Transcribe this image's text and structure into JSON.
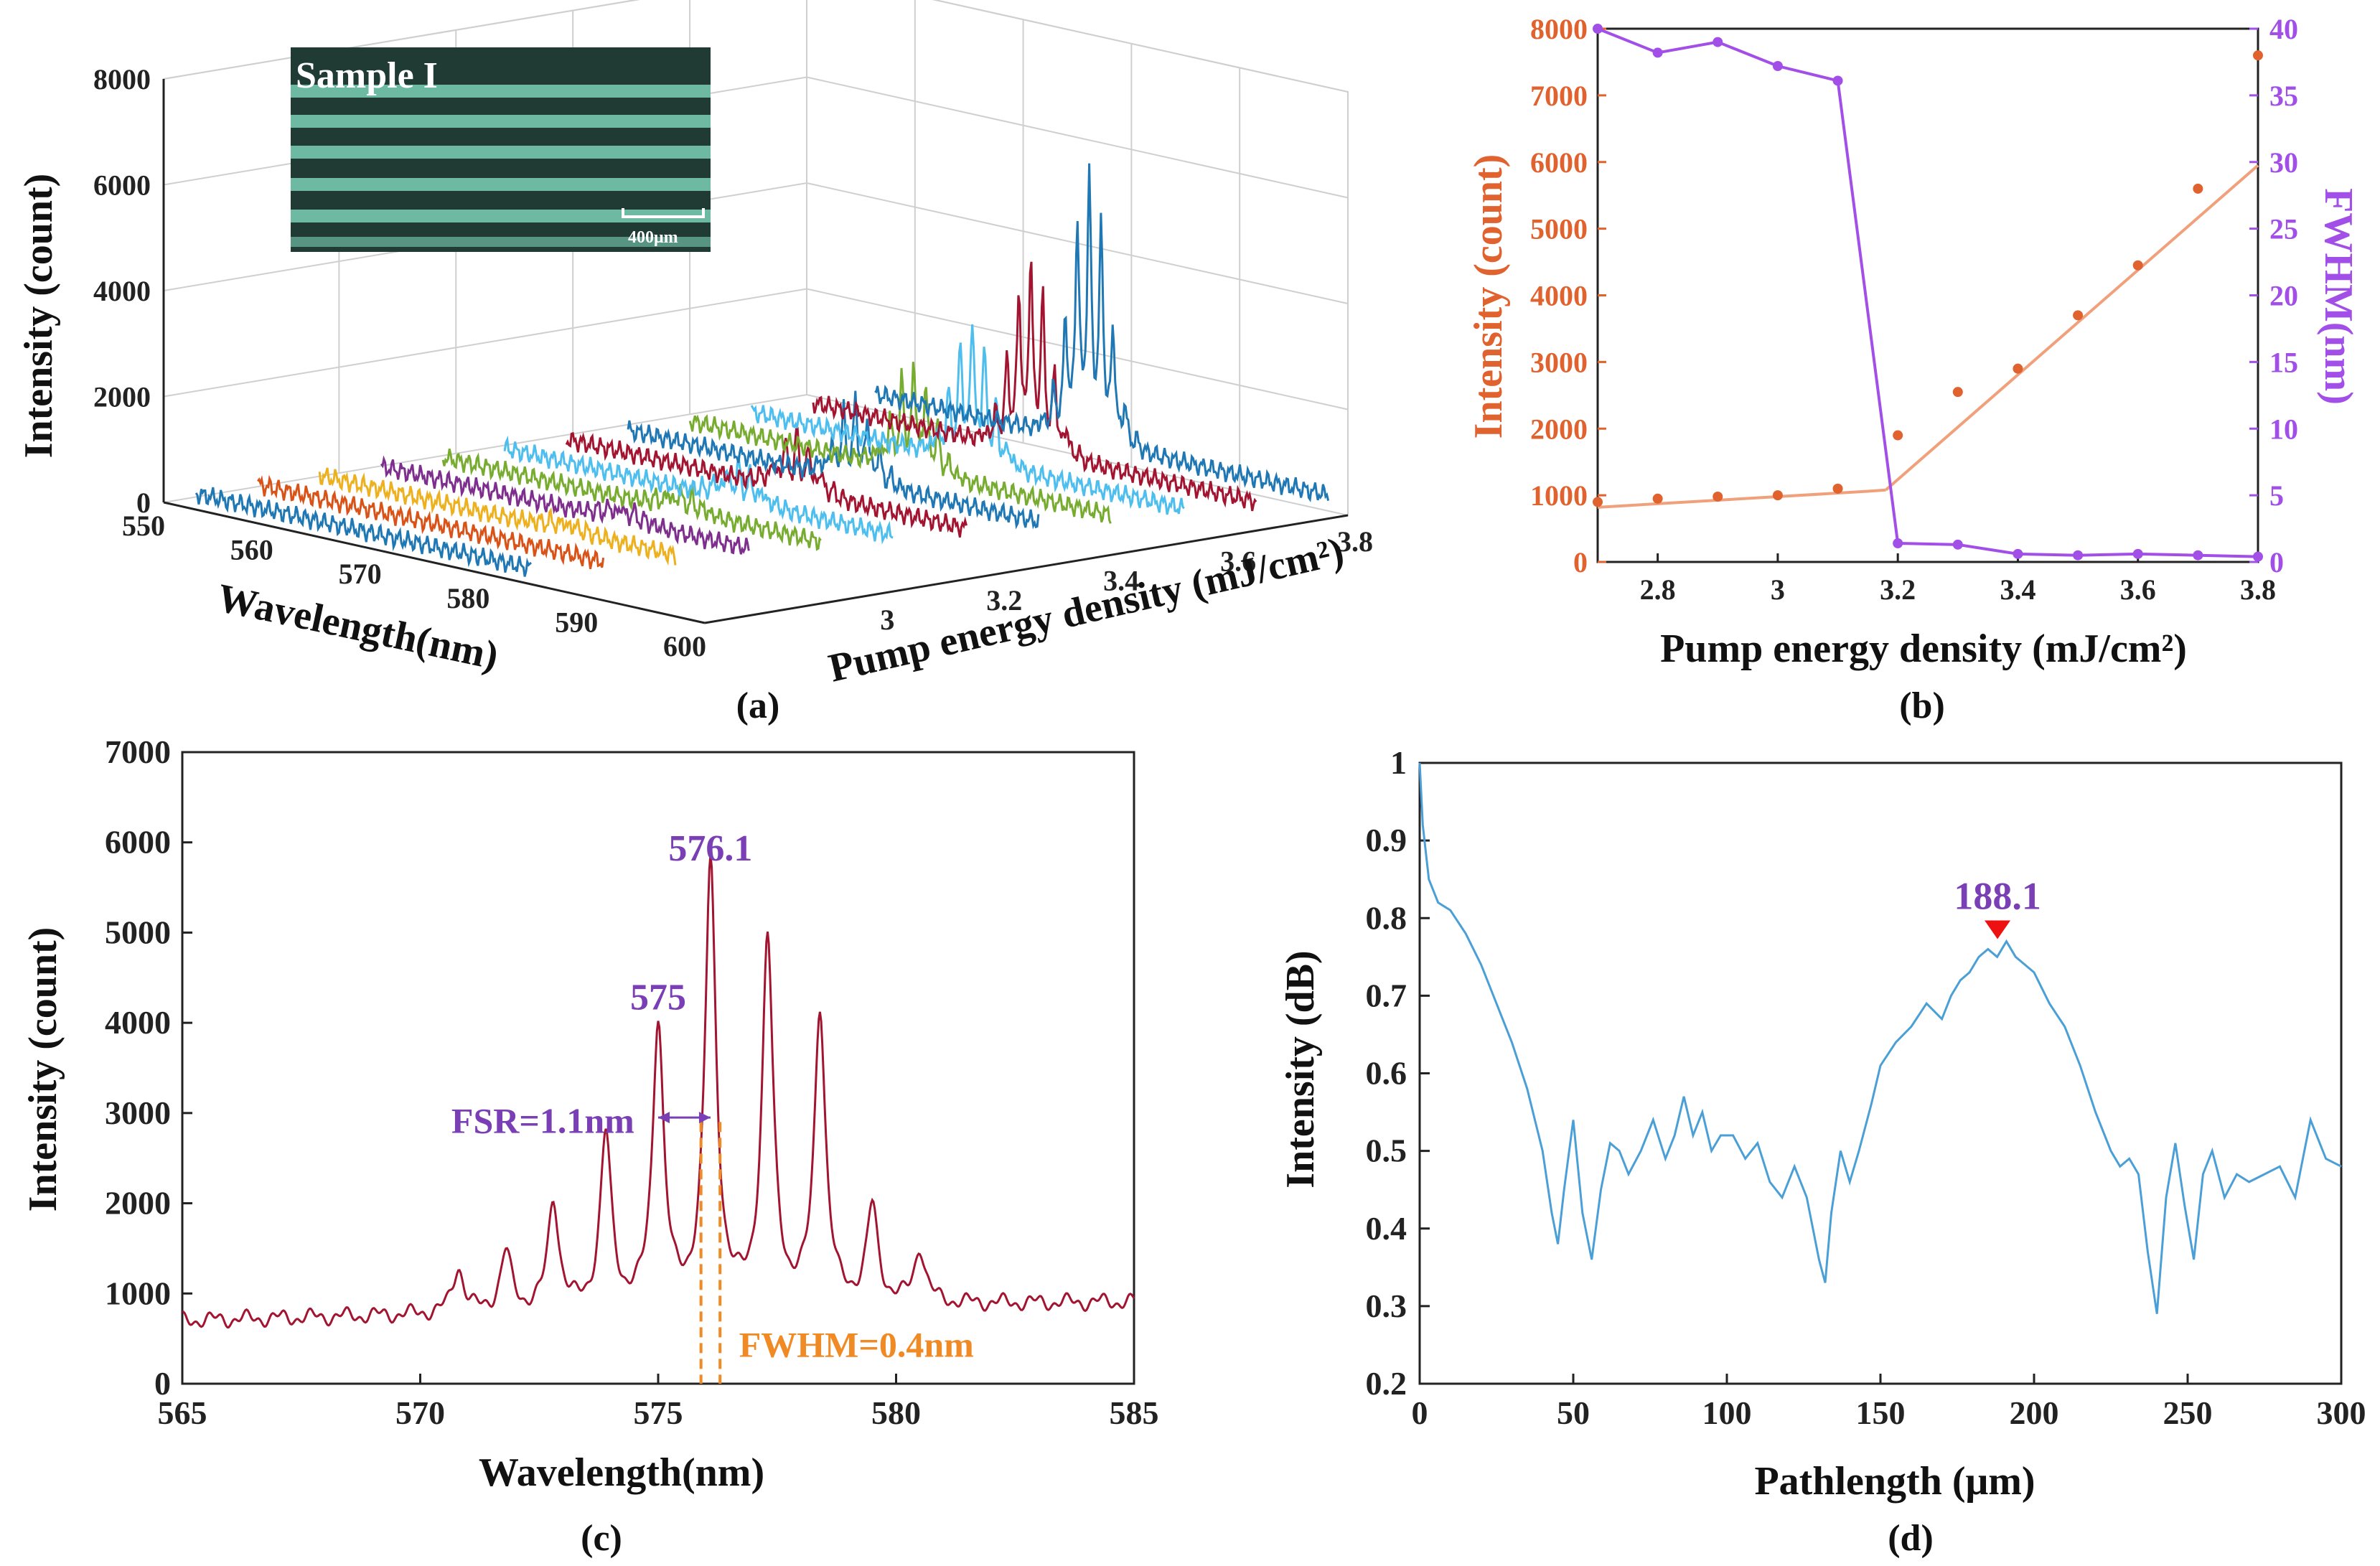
{
  "chart_data": [
    {
      "panel": "(a)",
      "type": "line",
      "projection": "3d",
      "inset_label": "Sample I",
      "scale_bar_label": "400μm",
      "xlabel": "Wavelength(nm)",
      "ylabel": "Pump energy density (mJ/cm²)",
      "zlabel": "Intensity (count)",
      "xlim": [
        550,
        600
      ],
      "ylim": [
        2.8,
        3.8
      ],
      "zlim": [
        0,
        8000
      ],
      "x_ticks": [
        "550",
        "560",
        "570",
        "580",
        "590",
        "600"
      ],
      "y_ticks": [
        "3",
        "3.2",
        "3.4",
        "3.6",
        "3.8"
      ],
      "z_ticks": [
        "0",
        "2000",
        "4000",
        "6000",
        "8000"
      ],
      "series": [
        {
          "pump": 2.7,
          "color": "#1f77b4",
          "peak": 0
        },
        {
          "pump": 2.8,
          "color": "#d95319",
          "peak": 0
        },
        {
          "pump": 2.9,
          "color": "#edb120",
          "peak": 200
        },
        {
          "pump": 3.0,
          "color": "#7e2f8e",
          "peak": 300
        },
        {
          "pump": 3.1,
          "color": "#77ac30",
          "peak": 400
        },
        {
          "pump": 3.2,
          "color": "#4dbeee",
          "peak": 700
        },
        {
          "pump": 3.3,
          "color": "#a2142f",
          "peak": 1100
        },
        {
          "pump": 3.4,
          "color": "#1f77b4",
          "peak": 1500
        },
        {
          "pump": 3.5,
          "color": "#77ac30",
          "peak": 2000
        },
        {
          "pump": 3.6,
          "color": "#4dbeee",
          "peak": 2600
        },
        {
          "pump": 3.7,
          "color": "#a2142f",
          "peak": 3500
        },
        {
          "pump": 3.8,
          "color": "#1f77b4",
          "peak": 4800
        }
      ]
    },
    {
      "panel": "(b)",
      "type": "scatter",
      "xlabel": "Pump energy density (mJ/cm²)",
      "ylabel": "Intensity (count)",
      "y2label": "FWHM(nm)",
      "xlim": [
        2.7,
        3.8
      ],
      "ylim": [
        0,
        8000
      ],
      "y2lim": [
        0,
        40
      ],
      "x_ticks": [
        "2.8",
        "3",
        "3.2",
        "3.4",
        "3.6",
        "3.8"
      ],
      "y_ticks": [
        "0",
        "1000",
        "2000",
        "3000",
        "4000",
        "5000",
        "6000",
        "7000",
        "8000"
      ],
      "y2_ticks": [
        "0",
        "5",
        "10",
        "15",
        "20",
        "25",
        "30",
        "35",
        "40"
      ],
      "series": [
        {
          "name": "Intensity",
          "axis": "left",
          "color": "#e0622e",
          "x": [
            2.7,
            2.8,
            2.9,
            3.0,
            3.1,
            3.2,
            3.3,
            3.4,
            3.5,
            3.6,
            3.7,
            3.8
          ],
          "values": [
            900,
            950,
            980,
            1000,
            1100,
            1900,
            2550,
            2900,
            3700,
            4450,
            5600,
            7600
          ]
        },
        {
          "name": "FWHM",
          "axis": "right",
          "color": "#a24fe8",
          "x": [
            2.7,
            2.8,
            2.9,
            3.0,
            3.1,
            3.2,
            3.3,
            3.4,
            3.5,
            3.6,
            3.7,
            3.8
          ],
          "values": [
            40,
            38.2,
            39,
            37.2,
            36.1,
            1.4,
            1.3,
            0.6,
            0.5,
            0.6,
            0.5,
            0.4
          ]
        }
      ],
      "fit_lines": [
        {
          "color": "#f0a07a",
          "x": [
            2.7,
            3.15,
            3.18
          ],
          "values": [
            820,
            1060,
            1080
          ]
        },
        {
          "color": "#f0a07a",
          "x": [
            3.18,
            3.8
          ],
          "values": [
            1080,
            5950
          ]
        }
      ]
    },
    {
      "panel": "(c)",
      "type": "line",
      "xlabel": "Wavelength(nm)",
      "ylabel": "Intensity (count)",
      "xlim": [
        565,
        585
      ],
      "ylim": [
        0,
        7000
      ],
      "x_ticks": [
        "565",
        "570",
        "575",
        "580",
        "585"
      ],
      "y_ticks": [
        "0",
        "1000",
        "2000",
        "3000",
        "4000",
        "5000",
        "6000",
        "7000"
      ],
      "color": "#a2142f",
      "baseline": 700,
      "peaks": [
        {
          "x": 570.8,
          "y": 1200
        },
        {
          "x": 571.8,
          "y": 1350
        },
        {
          "x": 572.8,
          "y": 1900
        },
        {
          "x": 573.9,
          "y": 2600
        },
        {
          "x": 575.0,
          "y": 3850
        },
        {
          "x": 576.1,
          "y": 5550
        },
        {
          "x": 577.3,
          "y": 4700
        },
        {
          "x": 578.4,
          "y": 3950
        },
        {
          "x": 579.5,
          "y": 1750
        },
        {
          "x": 580.5,
          "y": 1300
        }
      ],
      "annotations": {
        "peak_a": "576.1",
        "peak_b": "575",
        "fsr": "FSR=1.1nm",
        "fwhm": "FWHM=0.4nm"
      },
      "fwhm_lines": [
        575.9,
        576.3
      ]
    },
    {
      "panel": "(d)",
      "type": "line",
      "xlabel": "Pathlength (μm)",
      "ylabel": "Intensity (dB)",
      "xlim": [
        0,
        300
      ],
      "ylim": [
        0.2,
        1
      ],
      "x_ticks": [
        "0",
        "50",
        "100",
        "150",
        "200",
        "250",
        "300"
      ],
      "y_ticks": [
        "0.2",
        "0.3",
        "0.4",
        "0.5",
        "0.6",
        "0.7",
        "0.8",
        "0.9",
        "1"
      ],
      "color": "#4a9fd6",
      "marker_label": "188.1",
      "marker": {
        "x": 188.1,
        "y": 0.76
      },
      "x": [
        0,
        1,
        3,
        6,
        10,
        15,
        20,
        25,
        30,
        35,
        40,
        43,
        45,
        47,
        50,
        53,
        56,
        59,
        62,
        65,
        68,
        72,
        76,
        80,
        83,
        86,
        89,
        92,
        95,
        98,
        102,
        106,
        110,
        114,
        118,
        122,
        126,
        130,
        132,
        134,
        137,
        140,
        143,
        147,
        150,
        155,
        160,
        165,
        170,
        173,
        176,
        179,
        182,
        185,
        188,
        191,
        194,
        197,
        200,
        205,
        210,
        215,
        220,
        225,
        228,
        231,
        234,
        237,
        240,
        243,
        246,
        249,
        252,
        255,
        258,
        262,
        266,
        270,
        275,
        280,
        285,
        290,
        295,
        300
      ],
      "values": [
        1,
        0.92,
        0.85,
        0.82,
        0.81,
        0.78,
        0.74,
        0.69,
        0.64,
        0.58,
        0.5,
        0.42,
        0.38,
        0.45,
        0.54,
        0.42,
        0.36,
        0.45,
        0.51,
        0.5,
        0.47,
        0.5,
        0.54,
        0.49,
        0.52,
        0.57,
        0.52,
        0.55,
        0.5,
        0.52,
        0.52,
        0.49,
        0.51,
        0.46,
        0.44,
        0.48,
        0.44,
        0.36,
        0.33,
        0.42,
        0.5,
        0.46,
        0.5,
        0.56,
        0.61,
        0.64,
        0.66,
        0.69,
        0.67,
        0.7,
        0.72,
        0.73,
        0.75,
        0.76,
        0.75,
        0.77,
        0.75,
        0.74,
        0.73,
        0.69,
        0.66,
        0.61,
        0.55,
        0.5,
        0.48,
        0.49,
        0.47,
        0.37,
        0.29,
        0.44,
        0.51,
        0.43,
        0.36,
        0.47,
        0.5,
        0.44,
        0.47,
        0.46,
        0.47,
        0.48,
        0.44,
        0.54,
        0.49,
        0.48
      ]
    }
  ],
  "panel_labels": [
    "(a)",
    "(b)",
    "(c)",
    "(d)"
  ]
}
